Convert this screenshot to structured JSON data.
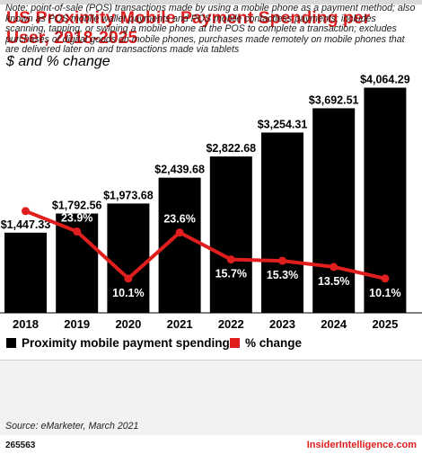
{
  "title": "US Proximity Mobile Payment Spending per User, 2018-2025",
  "subtitle": "$ and % change",
  "colors": {
    "bar": "#000000",
    "line": "#e01e1e",
    "title": "#e01e1e"
  },
  "chart_data": {
    "type": "bar",
    "categories": [
      "2018",
      "2019",
      "2020",
      "2021",
      "2022",
      "2023",
      "2024",
      "2025"
    ],
    "series": [
      {
        "name": "Proximity mobile payment spending",
        "type": "bar",
        "values": [
          1447.33,
          1792.56,
          1973.68,
          2439.68,
          2822.68,
          3254.31,
          3692.51,
          4064.29
        ],
        "labels": [
          "$1,447.33",
          "$1,792.56",
          "$1,973.68",
          "$2,439.68",
          "$2,822.68",
          "$3,254.31",
          "$3,692.51",
          "$4,064.29"
        ]
      },
      {
        "name": "% change",
        "type": "line",
        "values": [
          29.9,
          23.9,
          10.1,
          23.6,
          15.7,
          15.3,
          13.5,
          10.1
        ],
        "labels": [
          "29.9%",
          "23.9%",
          "10.1%",
          "23.6%",
          "15.7%",
          "15.3%",
          "13.5%",
          "10.1%"
        ]
      }
    ],
    "ylim": [
      0,
      4300
    ],
    "y2lim": [
      0,
      70
    ],
    "legend_position": "bottom-left",
    "grid": false
  },
  "legend": [
    {
      "label": "Proximity mobile payment spending",
      "color": "#000000"
    },
    {
      "label": "% change",
      "color": "#e01e1e"
    }
  ],
  "note": "Note: point-of-sale (POS) transactions made by using a mobile phone as a payment method; also known as POS mobile wallet payments and POS mobile contactless payments; includes scanning, tapping, or swiping a mobile phone at the POS to complete a transaction; excludes purchases of digital goods on mobile phones, purchases made remotely on mobile phones that are delivered later on and transactions made via tablets",
  "source": "Source: eMarketer, March 2021",
  "footer": {
    "chart_id": "265563",
    "brand": "InsiderIntelligence.com"
  }
}
